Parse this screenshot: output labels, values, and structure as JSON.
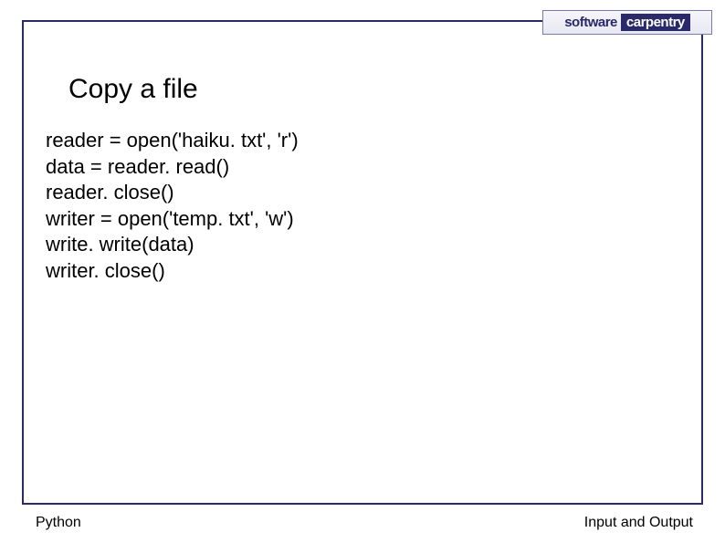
{
  "logo": {
    "word1": "software",
    "word2": "carpentry"
  },
  "title": "Copy a file",
  "code": {
    "lines": [
      "reader = open('haiku. txt', 'r')",
      "data = reader. read()",
      "reader. close()",
      "writer = open('temp. txt', 'w')",
      "write. write(data)",
      "writer. close()"
    ]
  },
  "footer": {
    "left": "Python",
    "right": "Input and Output"
  },
  "colors": {
    "frame_border": "#2a2a6a",
    "logo_bg_dark": "#2a2a6a",
    "text": "#000000",
    "background": "#ffffff"
  },
  "typography": {
    "title_fontsize": 30,
    "code_fontsize": 22,
    "footer_fontsize": 16,
    "logo_fontsize": 15
  }
}
